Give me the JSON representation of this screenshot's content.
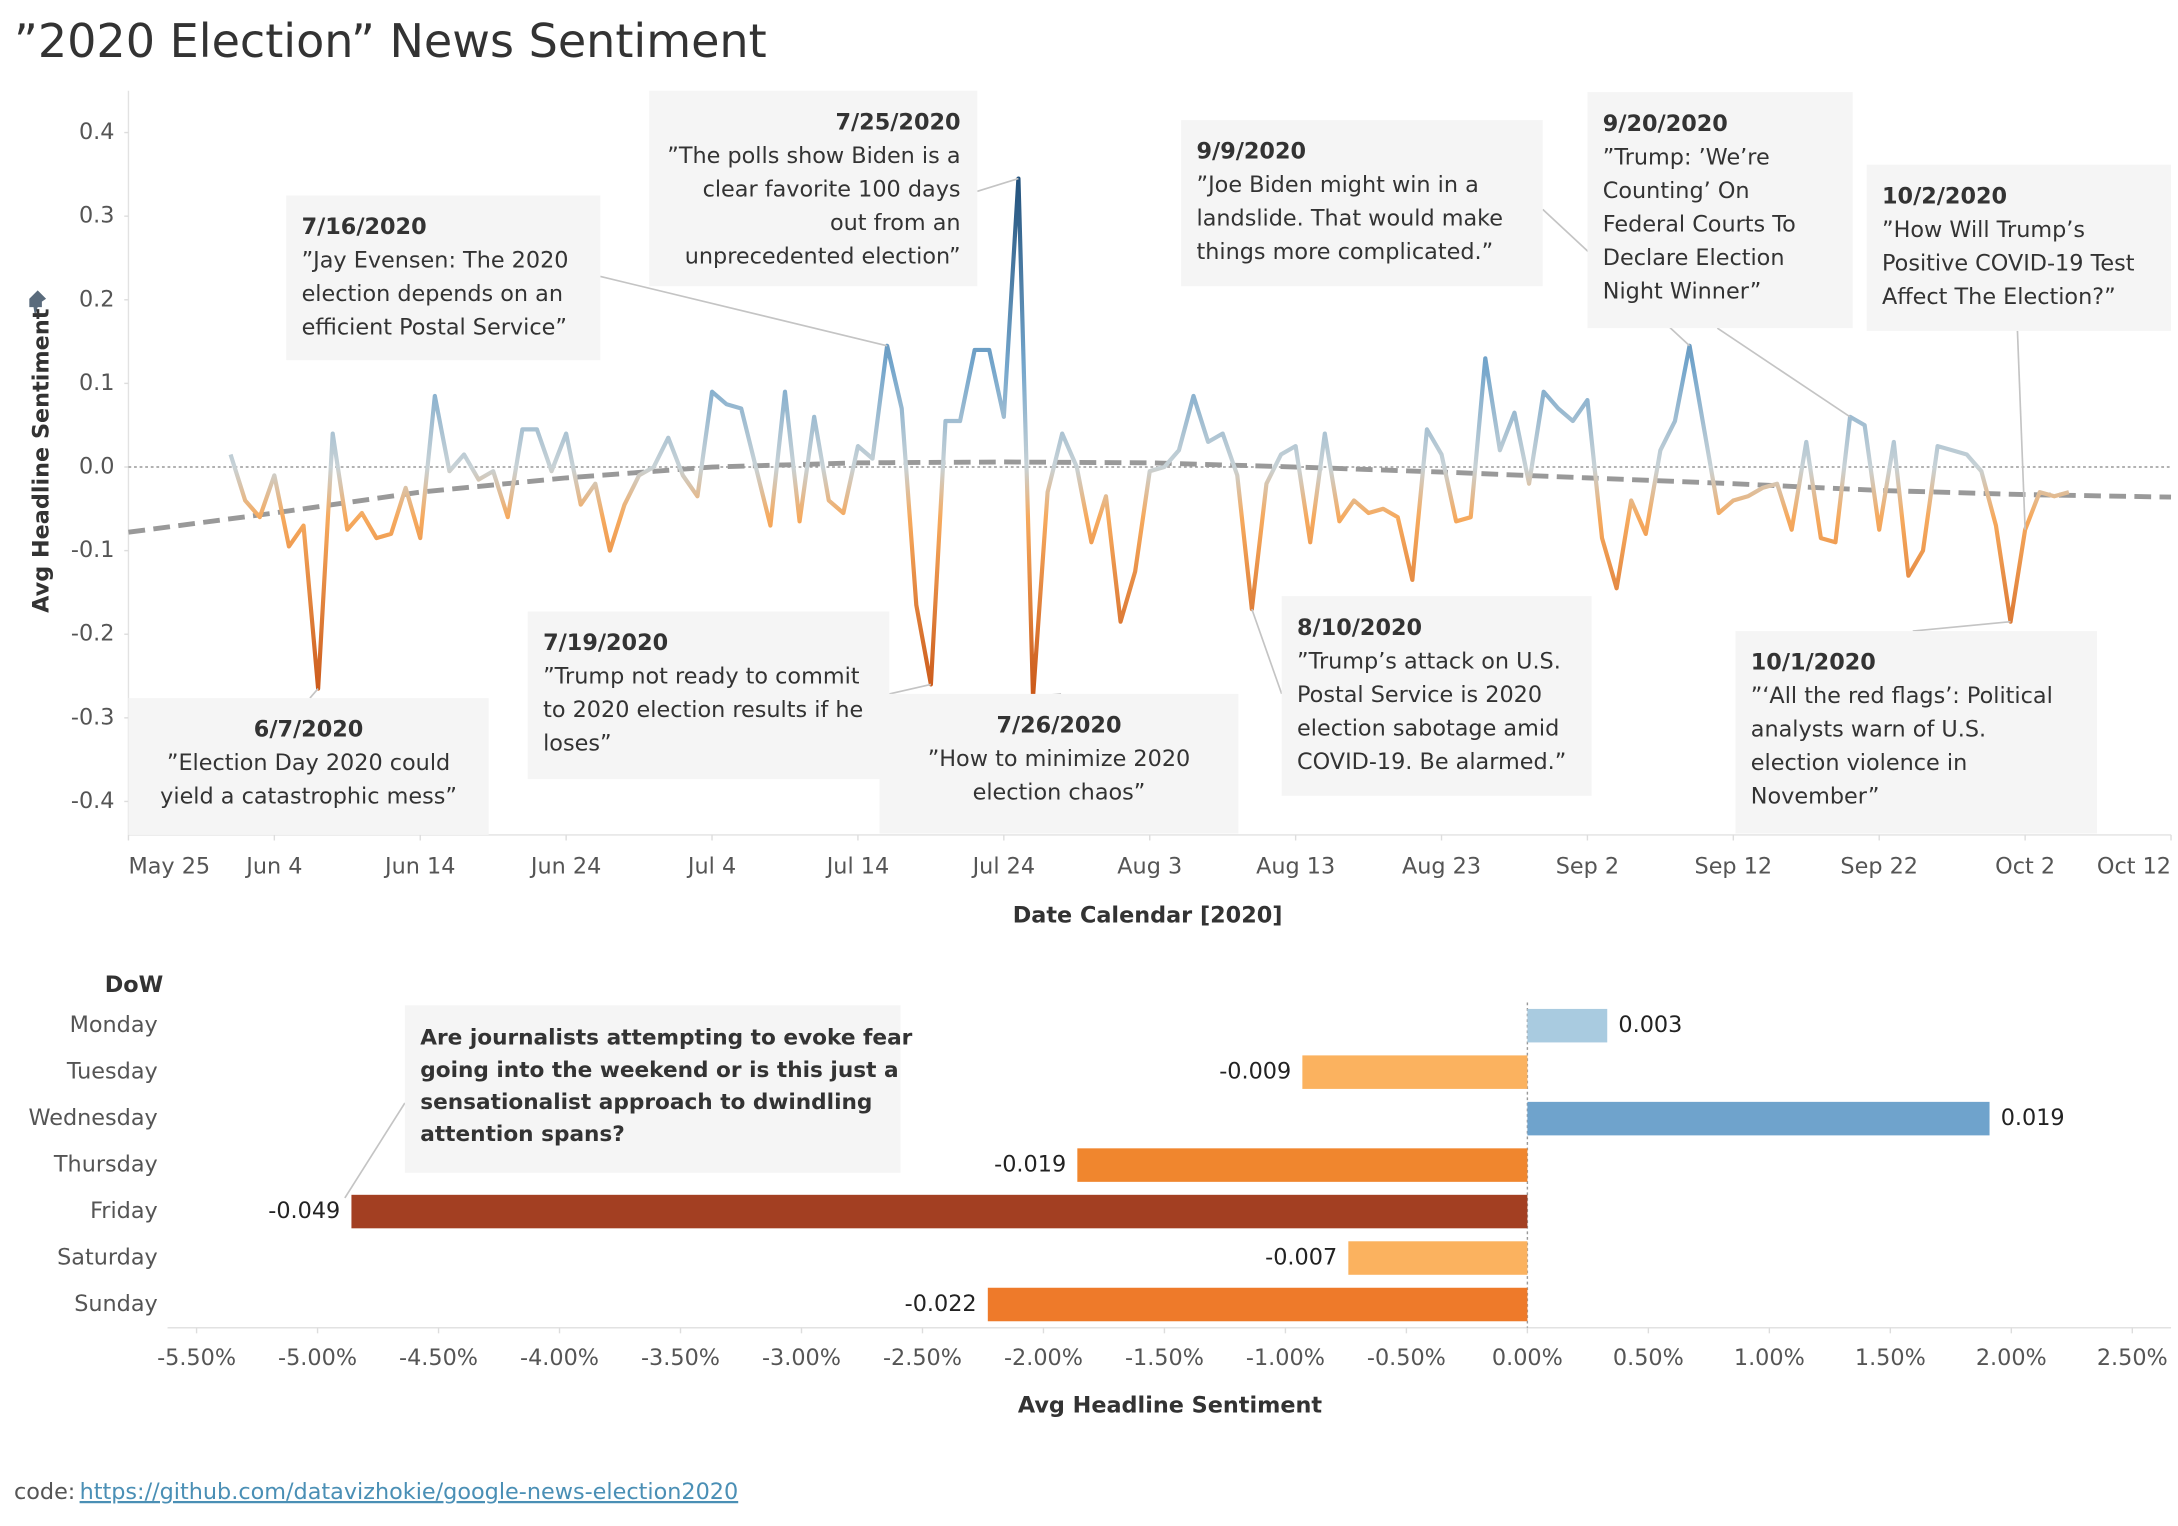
{
  "title": "”2020 Election” News Sentiment",
  "chart_data": [
    {
      "type": "line",
      "y_label": "Avg Headline Sentiment",
      "x_label": "Date Calendar [2020]",
      "x": [
        "2020-06-01",
        "2020-06-02",
        "2020-06-03",
        "2020-06-04",
        "2020-06-05",
        "2020-06-06",
        "2020-06-07",
        "2020-06-08",
        "2020-06-09",
        "2020-06-10",
        "2020-06-11",
        "2020-06-12",
        "2020-06-13",
        "2020-06-14",
        "2020-06-15",
        "2020-06-16",
        "2020-06-17",
        "2020-06-18",
        "2020-06-19",
        "2020-06-20",
        "2020-06-21",
        "2020-06-22",
        "2020-06-23",
        "2020-06-24",
        "2020-06-25",
        "2020-06-26",
        "2020-06-27",
        "2020-06-28",
        "2020-06-29",
        "2020-06-30",
        "2020-07-01",
        "2020-07-02",
        "2020-07-03",
        "2020-07-04",
        "2020-07-05",
        "2020-07-06",
        "2020-07-07",
        "2020-07-08",
        "2020-07-09",
        "2020-07-10",
        "2020-07-11",
        "2020-07-12",
        "2020-07-13",
        "2020-07-14",
        "2020-07-15",
        "2020-07-16",
        "2020-07-17",
        "2020-07-18",
        "2020-07-19",
        "2020-07-20",
        "2020-07-21",
        "2020-07-22",
        "2020-07-23",
        "2020-07-24",
        "2020-07-25",
        "2020-07-26",
        "2020-07-27",
        "2020-07-28",
        "2020-07-29",
        "2020-07-30",
        "2020-07-31",
        "2020-08-01",
        "2020-08-02",
        "2020-08-03",
        "2020-08-04",
        "2020-08-05",
        "2020-08-06",
        "2020-08-07",
        "2020-08-08",
        "2020-08-09",
        "2020-08-10",
        "2020-08-11",
        "2020-08-12",
        "2020-08-13",
        "2020-08-14",
        "2020-08-15",
        "2020-08-16",
        "2020-08-17",
        "2020-08-18",
        "2020-08-19",
        "2020-08-20",
        "2020-08-21",
        "2020-08-22",
        "2020-08-23",
        "2020-08-24",
        "2020-08-25",
        "2020-08-26",
        "2020-08-27",
        "2020-08-28",
        "2020-08-29",
        "2020-08-30",
        "2020-08-31",
        "2020-09-01",
        "2020-09-02",
        "2020-09-03",
        "2020-09-04",
        "2020-09-05",
        "2020-09-06",
        "2020-09-07",
        "2020-09-08",
        "2020-09-09",
        "2020-09-10",
        "2020-09-11",
        "2020-09-12",
        "2020-09-13",
        "2020-09-14",
        "2020-09-15",
        "2020-09-16",
        "2020-09-17",
        "2020-09-18",
        "2020-09-19",
        "2020-09-20",
        "2020-09-21",
        "2020-09-22",
        "2020-09-23",
        "2020-09-24",
        "2020-09-25",
        "2020-09-26",
        "2020-09-27",
        "2020-09-28",
        "2020-09-29",
        "2020-09-30",
        "2020-10-01",
        "2020-10-02",
        "2020-10-03",
        "2020-10-04",
        "2020-10-05"
      ],
      "values": [
        0.015,
        -0.04,
        -0.06,
        -0.01,
        -0.095,
        -0.07,
        -0.265,
        0.04,
        -0.075,
        -0.055,
        -0.085,
        -0.08,
        -0.025,
        -0.085,
        0.085,
        -0.005,
        0.015,
        -0.015,
        -0.005,
        -0.06,
        0.045,
        0.045,
        -0.005,
        0.04,
        -0.045,
        -0.02,
        -0.1,
        -0.045,
        -0.01,
        0.0,
        0.035,
        -0.01,
        -0.035,
        0.09,
        0.075,
        0.07,
        0.0,
        -0.07,
        0.09,
        -0.065,
        0.06,
        -0.04,
        -0.055,
        0.025,
        0.01,
        0.145,
        0.07,
        -0.165,
        -0.26,
        0.055,
        0.055,
        0.14,
        0.14,
        0.06,
        0.345,
        -0.275,
        -0.03,
        0.04,
        0.0,
        -0.09,
        -0.035,
        -0.185,
        -0.125,
        -0.005,
        0.0,
        0.02,
        0.085,
        0.03,
        0.04,
        -0.01,
        -0.17,
        -0.02,
        0.015,
        0.025,
        -0.09,
        0.04,
        -0.065,
        -0.04,
        -0.055,
        -0.05,
        -0.06,
        -0.135,
        0.045,
        0.015,
        -0.065,
        -0.06,
        0.13,
        0.02,
        0.065,
        -0.02,
        0.09,
        0.07,
        0.055,
        0.08,
        -0.085,
        -0.145,
        -0.04,
        -0.08,
        0.02,
        0.055,
        0.145,
        0.045,
        -0.055,
        -0.04,
        -0.035,
        -0.025,
        -0.02,
        -0.075,
        0.03,
        -0.085,
        -0.09,
        0.06,
        0.05,
        -0.075,
        0.03,
        -0.13,
        -0.1,
        0.025,
        0.02,
        0.015,
        -0.005,
        -0.07,
        -0.185,
        -0.075,
        -0.03,
        -0.035,
        -0.03
      ],
      "color_stops": [
        {
          "value": 0.35,
          "color": "#1f4e79"
        },
        {
          "value": 0.12,
          "color": "#74a6cc"
        },
        {
          "value": 0,
          "color": "#c8d2d6"
        },
        {
          "value": -0.06,
          "color": "#f6aa5e"
        },
        {
          "value": -0.28,
          "color": "#c95516"
        }
      ],
      "trend": {
        "color": "#999999",
        "x": [
          "2020-05-25",
          "2020-06-04",
          "2020-06-14",
          "2020-06-24",
          "2020-07-04",
          "2020-07-14",
          "2020-07-24",
          "2020-08-03",
          "2020-08-13",
          "2020-08-23",
          "2020-09-02",
          "2020-09-12",
          "2020-09-22",
          "2020-10-02",
          "2020-10-12"
        ],
        "values": [
          -0.078,
          -0.055,
          -0.03,
          -0.013,
          0.0,
          0.005,
          0.006,
          0.005,
          0.0,
          -0.006,
          -0.013,
          -0.02,
          -0.028,
          -0.033,
          -0.036
        ]
      },
      "xlim": [
        "2020-05-25",
        "2020-10-12"
      ],
      "xticks": [
        {
          "value": "2020-05-25",
          "label": "May 25"
        },
        {
          "value": "2020-06-04",
          "label": "Jun 4"
        },
        {
          "value": "2020-06-14",
          "label": "Jun 14"
        },
        {
          "value": "2020-06-24",
          "label": "Jun 24"
        },
        {
          "value": "2020-07-04",
          "label": "Jul 4"
        },
        {
          "value": "2020-07-14",
          "label": "Jul 14"
        },
        {
          "value": "2020-07-24",
          "label": "Jul 24"
        },
        {
          "value": "2020-08-03",
          "label": "Aug 3"
        },
        {
          "value": "2020-08-13",
          "label": "Aug 13"
        },
        {
          "value": "2020-08-23",
          "label": "Aug 23"
        },
        {
          "value": "2020-09-02",
          "label": "Sep 2"
        },
        {
          "value": "2020-09-12",
          "label": "Sep 12"
        },
        {
          "value": "2020-09-22",
          "label": "Sep 22"
        },
        {
          "value": "2020-10-02",
          "label": "Oct 2"
        },
        {
          "value": "2020-10-12",
          "label": "Oct 12"
        }
      ],
      "ylim": [
        -0.44,
        0.45
      ],
      "yticks": [
        -0.4,
        -0.3,
        -0.2,
        -0.1,
        {
          "value": 0,
          "label": "0.0"
        },
        0.1,
        0.2,
        0.3,
        0.4
      ],
      "zero_line": true,
      "annotations": [
        {
          "date": "6/7/2020",
          "text": [
            "”Election Day 2020 could",
            "yield a catastrophic mess”"
          ]
        },
        {
          "date": "7/16/2020",
          "text": [
            "”Jay Evensen: The 2020",
            "election depends on an",
            "efficient Postal Service”"
          ]
        },
        {
          "date": "7/25/2020",
          "text": [
            "”The polls show Biden is a",
            "clear favorite 100 days",
            "out from an",
            "unprecedented election”"
          ]
        },
        {
          "date": "7/19/2020",
          "text": [
            "”Trump not ready to commit",
            "to 2020 election results if he",
            "loses”"
          ]
        },
        {
          "date": "7/26/2020",
          "text": [
            "”How to minimize 2020",
            "election chaos”"
          ]
        },
        {
          "date": "9/9/2020",
          "text": [
            "”Joe Biden might win in a",
            "landslide. That would make",
            "things more complicated.”"
          ]
        },
        {
          "date": "9/20/2020",
          "text": [
            "”Trump: ’We’re",
            "Counting’ On",
            "Federal Courts To",
            "Declare Election",
            "Night Winner”"
          ]
        },
        {
          "date": "10/2/2020",
          "text": [
            "”How Will Trump’s",
            "Positive COVID-19 Test",
            "Affect The Election?”"
          ]
        },
        {
          "date": "8/10/2020",
          "text": [
            "”Trump’s attack on U.S.",
            "Postal Service is 2020",
            "election sabotage amid",
            "COVID-19. Be alarmed.”"
          ]
        },
        {
          "date": "10/1/2020",
          "text": [
            "”‘All the red flags’: Political",
            "analysts warn of U.S.",
            "election violence in",
            "November”"
          ]
        }
      ]
    },
    {
      "type": "bar",
      "orientation": "horizontal",
      "category_label": "DoW",
      "x_label": "Avg Headline Sentiment",
      "categories": [
        "Monday",
        "Tuesday",
        "Wednesday",
        "Thursday",
        "Friday",
        "Saturday",
        "Sunday"
      ],
      "values": [
        0.33,
        -0.93,
        1.91,
        -1.86,
        -4.86,
        -0.74,
        -2.23
      ],
      "value_labels": [
        "0.003",
        "-0.009",
        "0.019",
        "-0.019",
        "-0.049",
        "-0.007",
        "-0.022"
      ],
      "colors": [
        "#a9cbe0",
        "#fbb25f",
        "#6fa3cc",
        "#f0862e",
        "#a33f22",
        "#fbb25f",
        "#ee7a2a"
      ],
      "xlim": [
        -5.62,
        2.66
      ],
      "xticks": [
        {
          "value": -5.5,
          "label": "-5.50%"
        },
        {
          "value": -5,
          "label": "-5.00%"
        },
        {
          "value": -4.5,
          "label": "-4.50%"
        },
        {
          "value": -4,
          "label": "-4.00%"
        },
        {
          "value": -3.5,
          "label": "-3.50%"
        },
        {
          "value": -3,
          "label": "-3.00%"
        },
        {
          "value": -2.5,
          "label": "-2.50%"
        },
        {
          "value": -2,
          "label": "-2.00%"
        },
        {
          "value": -1.5,
          "label": "-1.50%"
        },
        {
          "value": -1,
          "label": "-1.00%"
        },
        {
          "value": -0.5,
          "label": "-0.50%"
        },
        {
          "value": 0,
          "label": "0.00%"
        },
        {
          "value": 0.5,
          "label": "0.50%"
        },
        {
          "value": 1,
          "label": "1.00%"
        },
        {
          "value": 1.5,
          "label": "1.50%"
        },
        {
          "value": 2,
          "label": "2.00%"
        },
        {
          "value": 2.5,
          "label": "2.50%"
        }
      ],
      "zero_line": true,
      "annotation": {
        "text": [
          "Are journalists attempting to evoke fear",
          "going into the weekend or is this just a",
          "sensationalist approach to dwindling",
          "attention spans?"
        ]
      }
    }
  ],
  "footer": {
    "label": "code:",
    "link": "https://github.com/datavizhokie/google-news-election2020"
  }
}
